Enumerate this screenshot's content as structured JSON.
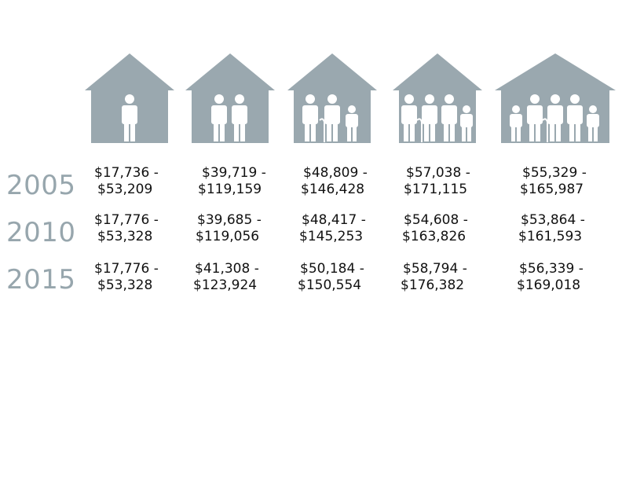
{
  "colors": {
    "house": "#9aa8af",
    "person": "#ffffff",
    "year_text": "#97a6ad",
    "value_text": "#111111"
  },
  "households": [
    {
      "icon": "household-1-person-icon"
    },
    {
      "icon": "household-2-people-icon"
    },
    {
      "icon": "household-3-people-icon"
    },
    {
      "icon": "household-4-people-icon"
    },
    {
      "icon": "household-5-people-icon"
    }
  ],
  "rows": [
    {
      "year": "2005",
      "ranges": [
        {
          "low": "$17,736  -",
          "high": "$53,209"
        },
        {
          "low": "$39,719 -",
          "high": "$119,159"
        },
        {
          "low": "$48,809  -",
          "high": "$146,428"
        },
        {
          "low": "$57,038  -",
          "high": "$171,115"
        },
        {
          "low": "$55,329  -",
          "high": "$165,987"
        }
      ]
    },
    {
      "year": "2010",
      "ranges": [
        {
          "low": "$17,776  -",
          "high": "$53,328"
        },
        {
          "low": "$39,685  -",
          "high": "$119,056"
        },
        {
          "low": "$48,417  -",
          "high": "$145,253"
        },
        {
          "low": "$54,608  -",
          "high": "$163,826"
        },
        {
          "low": "$53,864  -",
          "high": "$161,593"
        }
      ]
    },
    {
      "year": "2015",
      "ranges": [
        {
          "low": "$17,776  -",
          "high": "$53,328"
        },
        {
          "low": "$41,308  -",
          "high": "$123,924"
        },
        {
          "low": "$50,184  -",
          "high": "$150,554"
        },
        {
          "low": "$58,794  -",
          "high": "$176,382"
        },
        {
          "low": "$56,339  -",
          "high": "$169,018"
        }
      ]
    }
  ]
}
